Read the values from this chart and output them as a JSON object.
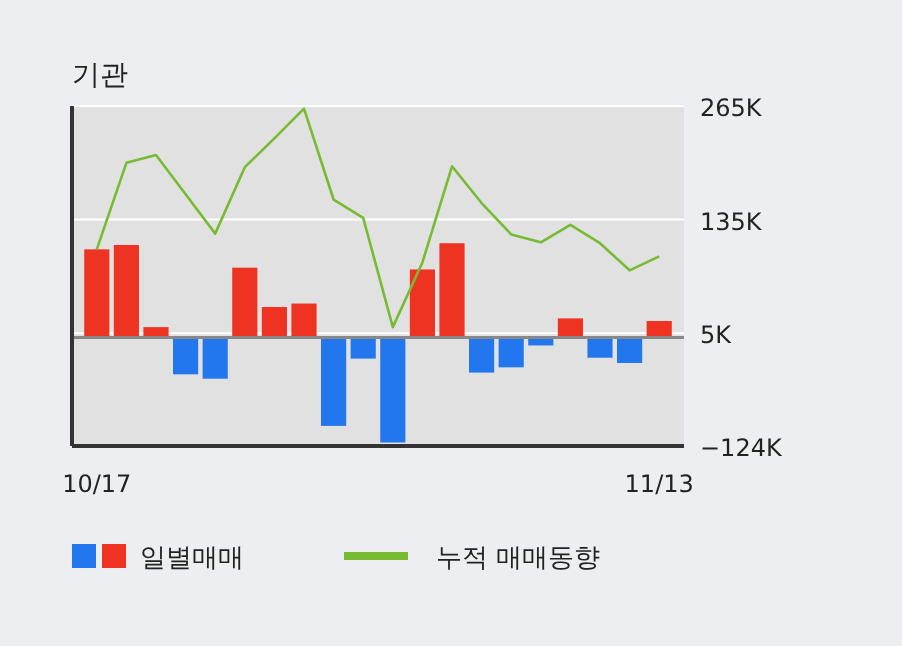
{
  "chart_data": {
    "type": "bar",
    "title": "기관",
    "categories": [
      "10/17",
      null,
      null,
      null,
      null,
      null,
      null,
      null,
      null,
      null,
      null,
      null,
      null,
      null,
      null,
      null,
      null,
      null,
      null,
      "11/13"
    ],
    "series": [
      {
        "name": "일별매매",
        "colors": [
          "#ee3322",
          "#ee3322",
          "#ee3322",
          "#2277ee",
          "#2277ee",
          "#ee3322",
          "#ee3322",
          "#ee3322",
          "#2277ee",
          "#2277ee",
          "#2277ee",
          "#ee3322",
          "#ee3322",
          "#2277ee",
          "#2277ee",
          "#2277ee",
          "#ee3322",
          "#2277ee",
          "#2277ee",
          "#ee3322"
        ],
        "values": [
          101,
          106,
          12,
          -42,
          -47,
          80,
          35,
          39,
          -101,
          -24,
          -120,
          78,
          108,
          -40,
          -34,
          -9,
          22,
          -23,
          -29,
          19
        ]
      },
      {
        "name": "누적 매매동향",
        "type": "line",
        "color": "#77bb33",
        "values": [
          101,
          200,
          209,
          164,
          119,
          195,
          228,
          262,
          158,
          137,
          12,
          86,
          196,
          154,
          118,
          109,
          129,
          108,
          77,
          93
        ]
      }
    ],
    "ylim": [
      -124,
      265
    ],
    "yticks": [
      {
        "value": 265,
        "label": "265K"
      },
      {
        "value": 135,
        "label": "135K"
      },
      {
        "value": 5,
        "label": "5K"
      },
      {
        "value": -124,
        "label": "−124K"
      }
    ],
    "grid": "y",
    "legend": "bottom"
  }
}
